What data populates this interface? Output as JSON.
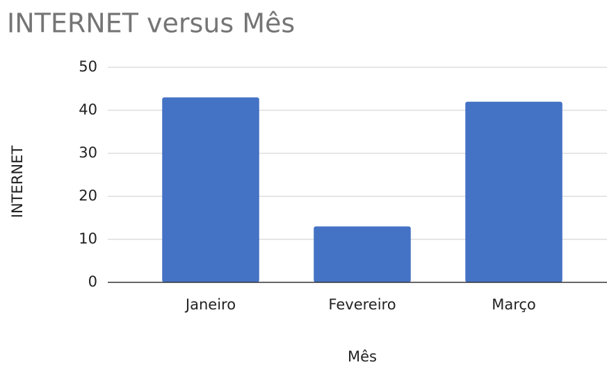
{
  "chart_data": {
    "type": "bar",
    "title": "INTERNET versus Mês",
    "x_label": "Mês",
    "y_label": "INTERNET",
    "categories": [
      "Janeiro",
      "Fevereiro",
      "Março"
    ],
    "values": [
      43,
      13,
      42
    ],
    "color": "#4472c4",
    "ylim": [
      0,
      50
    ],
    "yticks": [
      0,
      10,
      20,
      30,
      40,
      50
    ],
    "grid": true
  }
}
